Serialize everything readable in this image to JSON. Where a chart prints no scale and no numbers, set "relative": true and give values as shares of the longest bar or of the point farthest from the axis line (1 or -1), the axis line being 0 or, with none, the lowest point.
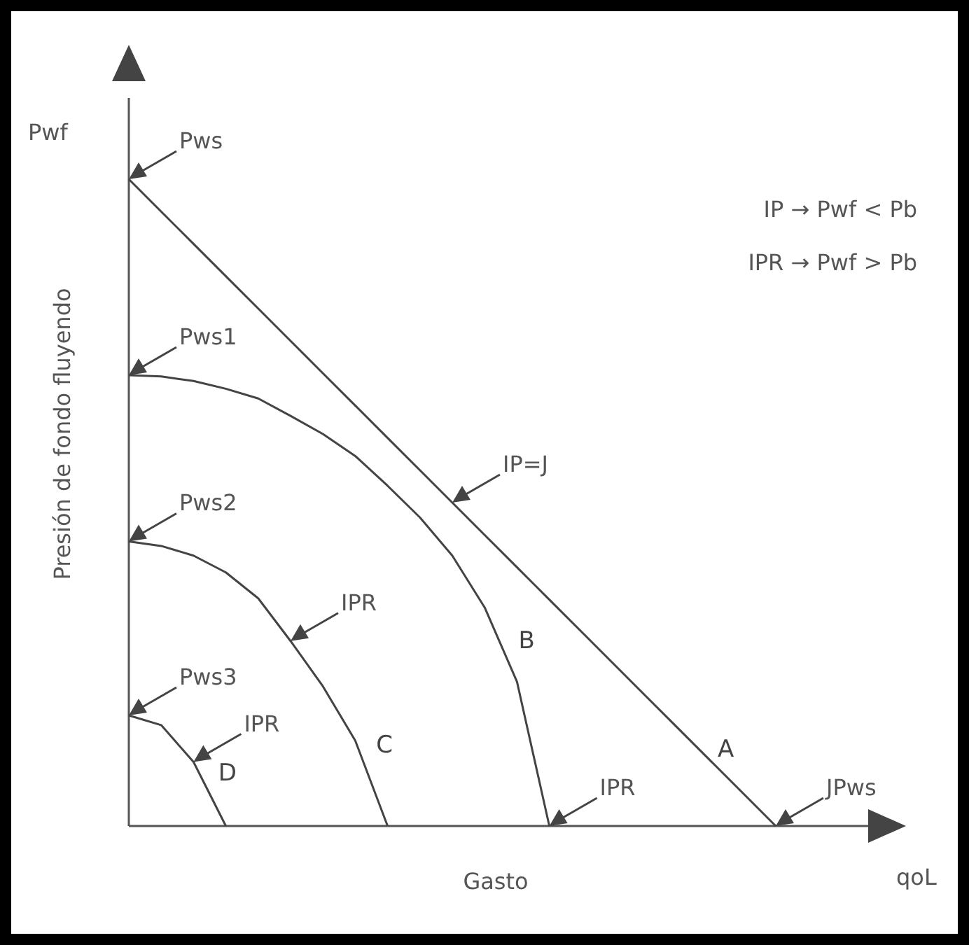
{
  "chart_data": {
    "type": "line",
    "relative": true,
    "xlabel": "Gasto",
    "ylabel": "Presión de fondo fluyendo",
    "categories": [
      null,
      null,
      null,
      null,
      null,
      null,
      null,
      null,
      null,
      null,
      null,
      null,
      null,
      null,
      null,
      null,
      null,
      null,
      null,
      null,
      null
    ],
    "series": [
      {
        "name": "A",
        "color": "#444444",
        "values": [
          1,
          0.95,
          0.9,
          0.85,
          0.8,
          0.75,
          0.7,
          0.65,
          0.6,
          0.55,
          0.5,
          0.45,
          0.4,
          0.35,
          0.3,
          0.25,
          0.2,
          0.15,
          0.1,
          0.05,
          0
        ]
      },
      {
        "name": "B",
        "color": "#444444",
        "values": [
          0.697,
          0.695,
          0.688,
          0.676,
          0.661,
          0.634,
          0.606,
          0.572,
          0.526,
          0.477,
          0.418,
          0.338,
          0.223,
          0,
          null,
          null,
          null,
          null,
          null,
          null,
          null
        ]
      },
      {
        "name": "C",
        "color": "#444444",
        "values": [
          0.44,
          0.433,
          0.418,
          0.392,
          0.352,
          0.286,
          0.216,
          0.132,
          0,
          null,
          null,
          null,
          null,
          null,
          null,
          null,
          null,
          null,
          null,
          null,
          null
        ]
      },
      {
        "name": "D",
        "color": "#444444",
        "values": [
          0.171,
          0.156,
          0.099,
          0,
          null,
          null,
          null,
          null,
          null,
          null,
          null,
          null,
          null,
          null,
          null,
          null,
          null,
          null,
          null,
          null,
          null
        ]
      }
    ],
    "annotations": [
      "Pwf",
      "qoL",
      "IP → Pwf < Pb",
      "IPR → Pwf > Pb",
      "Pws",
      "Pws1",
      "Pws2",
      "Pws3",
      "IP=J",
      "IPR",
      "IPR",
      "IPR",
      "JPws"
    ],
    "marker": "none",
    "line_style": "solid"
  }
}
